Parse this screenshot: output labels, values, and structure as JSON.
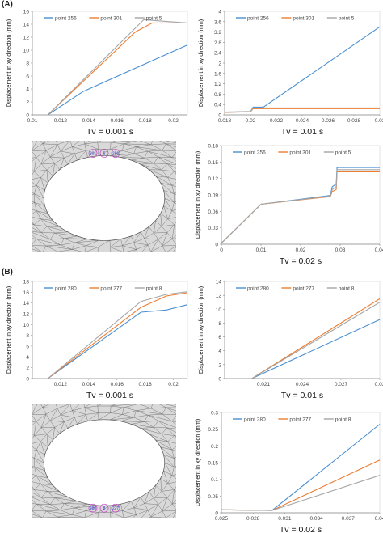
{
  "panels": [
    {
      "label": "(A)"
    },
    {
      "label": "(B)"
    }
  ],
  "colors": {
    "blue": "#4a8fd1",
    "orange": "#ed7d31",
    "gray": "#a5a5a5"
  },
  "chart_data": [
    {
      "id": "a1",
      "type": "line",
      "xlabel": "Tv = 0.001 s",
      "ylabel": "Displacement in xy direction (mm)",
      "xlim": [
        0.01,
        0.021
      ],
      "ylim": [
        0,
        16
      ],
      "xticks": [
        0.01,
        0.012,
        0.014,
        0.016,
        0.018,
        0.02
      ],
      "xtick_labels": [
        "0.01",
        "0.012",
        "0.014",
        "0.016",
        "0.018",
        "0.02"
      ],
      "yticks": [
        0,
        2,
        4,
        6,
        8,
        10,
        12,
        14,
        16
      ],
      "ytick_labels": [
        "0",
        "2",
        "4",
        "6",
        "8",
        "10",
        "12",
        "14",
        "16"
      ],
      "legend": "top",
      "series": [
        {
          "name": "point 256",
          "color": "#4a8fd1",
          "x": [
            0.0111,
            0.0136,
            0.021
          ],
          "y": [
            0,
            3.6,
            10.8
          ]
        },
        {
          "name": "point 301",
          "color": "#ed7d31",
          "x": [
            0.0111,
            0.0173,
            0.0185,
            0.021
          ],
          "y": [
            0,
            12.8,
            14.2,
            14.2
          ]
        },
        {
          "name": "point 5",
          "color": "#a5a5a5",
          "x": [
            0.0111,
            0.0179,
            0.021
          ],
          "y": [
            0,
            14.7,
            14.2
          ]
        }
      ]
    },
    {
      "id": "a2",
      "type": "line",
      "xlabel": "Tv = 0.01 s",
      "ylabel": "Displacement in xy direction (mm)",
      "xlim": [
        0.018,
        0.03
      ],
      "ylim": [
        0,
        4
      ],
      "xticks": [
        0.018,
        0.02,
        0.022,
        0.024,
        0.026,
        0.028,
        0.03
      ],
      "xtick_labels": [
        "0.018",
        "0.02",
        "0.022",
        "0.024",
        "0.026",
        "0.028",
        "0.03"
      ],
      "yticks": [
        0,
        0.4,
        0.8,
        1.2,
        1.6,
        2,
        2.4,
        2.8,
        3.2,
        3.6,
        4
      ],
      "ytick_labels": [
        "0",
        "0.4",
        "0.8",
        "1.2",
        "1.6",
        "2",
        "2.4",
        "2.8",
        "3.2",
        "3.6",
        "4"
      ],
      "legend": "top",
      "series": [
        {
          "name": "point 256",
          "color": "#4a8fd1",
          "x": [
            0.018,
            0.02,
            0.0202,
            0.021,
            0.03
          ],
          "y": [
            0.1,
            0.12,
            0.3,
            0.3,
            3.4
          ]
        },
        {
          "name": "point 301",
          "color": "#ed7d31",
          "x": [
            0.018,
            0.02,
            0.0202,
            0.03
          ],
          "y": [
            0.1,
            0.12,
            0.24,
            0.24
          ]
        },
        {
          "name": "point 5",
          "color": "#a5a5a5",
          "x": [
            0.018,
            0.02,
            0.0202,
            0.03
          ],
          "y": [
            0.11,
            0.13,
            0.27,
            0.27
          ]
        }
      ]
    },
    {
      "id": "a3",
      "type": "line",
      "xlabel": "Tv = 0.02 s",
      "ylabel": "Displacement in xy direction (mm)",
      "xlim": [
        0,
        0.04
      ],
      "ylim": [
        0,
        0.18
      ],
      "xticks": [
        0,
        0.01,
        0.02,
        0.03,
        0.04
      ],
      "xtick_labels": [
        "0",
        "0.01",
        "0.02",
        "0.03",
        "0.04"
      ],
      "yticks": [
        0,
        0.03,
        0.06,
        0.09,
        0.12,
        0.15,
        0.18
      ],
      "ytick_labels": [
        "0",
        "0.03",
        "0.06",
        "0.09",
        "0.12",
        "0.15",
        "0.18"
      ],
      "legend": "top",
      "series": [
        {
          "name": "point 256",
          "color": "#4a8fd1",
          "x": [
            0,
            0.01,
            0.0275,
            0.028,
            0.029,
            0.0292,
            0.04
          ],
          "y": [
            0.002,
            0.073,
            0.089,
            0.105,
            0.11,
            0.14,
            0.14
          ]
        },
        {
          "name": "point 301",
          "color": "#ed7d31",
          "x": [
            0,
            0.01,
            0.0275,
            0.028,
            0.029,
            0.0292,
            0.04
          ],
          "y": [
            0.002,
            0.073,
            0.087,
            0.096,
            0.1,
            0.132,
            0.132
          ]
        },
        {
          "name": "point 5",
          "color": "#a5a5a5",
          "x": [
            0,
            0.01,
            0.0275,
            0.028,
            0.029,
            0.0292,
            0.04
          ],
          "y": [
            0.002,
            0.073,
            0.088,
            0.1,
            0.105,
            0.136,
            0.136
          ]
        }
      ]
    },
    {
      "id": "b1",
      "type": "line",
      "xlabel": "Tv = 0.001 s",
      "ylabel": "Displacement in xy direction (mm)",
      "xlim": [
        0.01,
        0.021
      ],
      "ylim": [
        0,
        18
      ],
      "xticks": [
        0.012,
        0.014,
        0.016,
        0.018,
        0.02
      ],
      "xtick_labels": [
        "0.012",
        "0.014",
        "0.016",
        "0.018",
        "0.02"
      ],
      "yticks": [
        0,
        2,
        4,
        6,
        8,
        10,
        12,
        14,
        16,
        18
      ],
      "ytick_labels": [
        "0",
        "2",
        "4",
        "6",
        "8",
        "10",
        "12",
        "14",
        "16",
        "18"
      ],
      "legend": "top",
      "series": [
        {
          "name": "point 280",
          "color": "#4a8fd1",
          "x": [
            0.0108,
            0.0111,
            0.0177,
            0.0195,
            0.021
          ],
          "y": [
            0,
            0,
            12.3,
            12.7,
            13.7
          ]
        },
        {
          "name": "point 277",
          "color": "#ed7d31",
          "x": [
            0.0108,
            0.0111,
            0.0177,
            0.0195,
            0.021
          ],
          "y": [
            0,
            0,
            13.2,
            15.3,
            15.9
          ]
        },
        {
          "name": "point 8",
          "color": "#a5a5a5",
          "x": [
            0.0108,
            0.0111,
            0.0177,
            0.0195,
            0.021
          ],
          "y": [
            0,
            0,
            14.3,
            15.6,
            16.1
          ]
        }
      ]
    },
    {
      "id": "b2",
      "type": "line",
      "xlabel": "Tv = 0.01 s",
      "ylabel": "Displacement in xy direction (mm)",
      "xlim": [
        0.018,
        0.03
      ],
      "ylim": [
        0,
        14
      ],
      "xticks": [
        0.021,
        0.024,
        0.027,
        0.03
      ],
      "xtick_labels": [
        "0.021",
        "0.024",
        "0.027",
        "0.03"
      ],
      "yticks": [
        0,
        2,
        4,
        6,
        8,
        10,
        12,
        14
      ],
      "ytick_labels": [
        "0",
        "2",
        "4",
        "6",
        "8",
        "10",
        "12",
        "14"
      ],
      "legend": "top",
      "series": [
        {
          "name": "point 280",
          "color": "#4a8fd1",
          "x": [
            0.0201,
            0.03
          ],
          "y": [
            0,
            8.5
          ]
        },
        {
          "name": "point 277",
          "color": "#ed7d31",
          "x": [
            0.0201,
            0.03
          ],
          "y": [
            0,
            11.5
          ]
        },
        {
          "name": "point 8",
          "color": "#a5a5a5",
          "x": [
            0.0201,
            0.03
          ],
          "y": [
            0,
            11
          ]
        }
      ]
    },
    {
      "id": "b3",
      "type": "line",
      "xlabel": "Tv = 0.02 s",
      "ylabel": "Displacement in xy direction (mm)",
      "xlim": [
        0.025,
        0.04
      ],
      "ylim": [
        0,
        0.3
      ],
      "xticks": [
        0.025,
        0.028,
        0.031,
        0.034,
        0.037,
        0.04
      ],
      "xtick_labels": [
        "0.025",
        "0.028",
        "0.031",
        "0.034",
        "0.037",
        "0.04"
      ],
      "yticks": [
        0,
        0.05,
        0.1,
        0.15,
        0.2,
        0.25,
        0.3
      ],
      "ytick_labels": [
        "0",
        "0.05",
        "0.1",
        "0.15",
        "0.2",
        "0.25",
        "0.3"
      ],
      "legend": "top",
      "series": [
        {
          "name": "point 280",
          "color": "#4a8fd1",
          "x": [
            0.025,
            0.0298,
            0.04
          ],
          "y": [
            0.009,
            0.007,
            0.265
          ]
        },
        {
          "name": "point 277",
          "color": "#ed7d31",
          "x": [
            0.025,
            0.0298,
            0.04
          ],
          "y": [
            0.009,
            0.007,
            0.158
          ]
        },
        {
          "name": "point 8",
          "color": "#a5a5a5",
          "x": [
            0.025,
            0.0298,
            0.04
          ],
          "y": [
            0.009,
            0.007,
            0.112
          ]
        }
      ]
    }
  ],
  "meshes": [
    {
      "id": "meshA",
      "markers": [
        "301",
        "5",
        "256"
      ]
    },
    {
      "id": "meshB",
      "markers": [
        "280",
        "8",
        "277"
      ]
    }
  ]
}
